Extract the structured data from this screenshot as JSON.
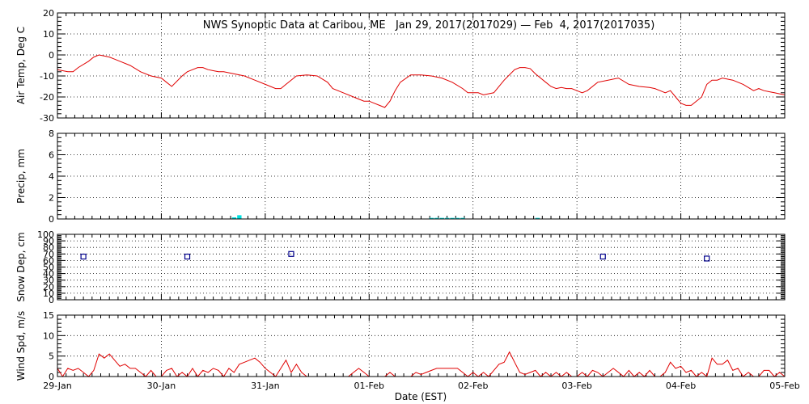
{
  "title": "NWS Synoptic Data at Caribou, ME   Jan 29, 2017(2017029) — Feb  4, 2017(2017035)",
  "xlabel": "Date (EST)",
  "x_tick_labels": [
    "29-Jan",
    "30-Jan",
    "31-Jan",
    "01-Feb",
    "02-Feb",
    "03-Feb",
    "04-Feb",
    "05-Feb"
  ],
  "colors": {
    "temp": "#e00000",
    "precip": "#00e0e0",
    "snow": "#00008b",
    "wind": "#e00000",
    "axis": "#000000",
    "grid": "#000000"
  },
  "chart_data": [
    {
      "type": "line",
      "name": "air_temp",
      "ylabel": "Air Temp, Deg C",
      "ylim": [
        -30,
        20
      ],
      "yticks": [
        -30,
        -20,
        -10,
        0,
        10,
        20
      ],
      "xlim": [
        0,
        7
      ],
      "grid": true,
      "series": [
        {
          "name": "",
          "x": [
            0.0,
            0.1,
            0.15,
            0.2,
            0.3,
            0.35,
            0.4,
            0.45,
            0.5,
            0.55,
            0.6,
            0.7,
            0.8,
            0.9,
            1.0,
            1.05,
            1.1,
            1.2,
            1.25,
            1.3,
            1.35,
            1.4,
            1.45,
            1.5,
            1.55,
            1.6,
            1.7,
            1.8,
            1.9,
            2.0,
            2.1,
            2.15,
            2.2,
            2.3,
            2.4,
            2.5,
            2.6,
            2.65,
            2.75,
            2.85,
            2.9,
            2.95,
            3.0,
            3.05,
            3.1,
            3.15,
            3.2,
            3.25,
            3.3,
            3.4,
            3.5,
            3.6,
            3.7,
            3.8,
            3.9,
            3.95,
            4.0,
            4.05,
            4.1,
            4.2,
            4.3,
            4.4,
            4.45,
            4.5,
            4.55,
            4.6,
            4.7,
            4.75,
            4.8,
            4.85,
            4.9,
            4.95,
            5.0,
            5.05,
            5.1,
            5.2,
            5.3,
            5.4,
            5.5,
            5.6,
            5.7,
            5.75,
            5.8,
            5.85,
            5.9,
            5.95,
            6.0,
            6.05,
            6.1,
            6.2,
            6.25,
            6.3,
            6.35,
            6.4,
            6.5,
            6.6,
            6.7,
            6.75,
            6.8,
            6.85,
            6.9,
            6.95,
            7.0
          ],
          "y": [
            -7,
            -8,
            -8,
            -6,
            -3,
            -1,
            0,
            -0.5,
            -1,
            -2,
            -3,
            -5,
            -8,
            -10,
            -11,
            -13,
            -15,
            -10,
            -8,
            -7,
            -6,
            -6,
            -7,
            -7.5,
            -8,
            -8,
            -9,
            -10,
            -12,
            -14,
            -16,
            -16,
            -14,
            -10,
            -9.5,
            -10,
            -13,
            -16,
            -18,
            -20,
            -21,
            -22,
            -22,
            -23,
            -24,
            -25,
            -22,
            -17,
            -13,
            -9.5,
            -9.5,
            -10,
            -11,
            -13,
            -16,
            -18,
            -18,
            -18,
            -19,
            -18,
            -12,
            -7,
            -6,
            -6,
            -6.5,
            -9,
            -13,
            -15,
            -16,
            -15.5,
            -16,
            -16,
            -17,
            -18,
            -17,
            -13,
            -12,
            -11,
            -14,
            -15,
            -15.5,
            -16,
            -17,
            -18,
            -17,
            -20,
            -23,
            -24,
            -24,
            -20,
            -14,
            -12,
            -12,
            -11,
            -12,
            -14,
            -17,
            -16,
            -17,
            -17.5,
            -18,
            -18.5,
            -19
          ]
        }
      ]
    },
    {
      "type": "bar",
      "name": "precip",
      "ylabel": "Precip, mm",
      "ylim": [
        0,
        8
      ],
      "yticks": [
        0,
        2,
        4,
        6,
        8
      ],
      "xlim": [
        0,
        7
      ],
      "grid": true,
      "series": [
        {
          "name": "",
          "x": [
            1.68,
            1.73,
            3.58,
            3.63,
            3.68,
            3.73,
            3.78,
            3.83,
            3.88,
            4.6
          ],
          "values": [
            0.15,
            0.35,
            0.1,
            0.1,
            0.1,
            0.1,
            0.1,
            0.1,
            0.1,
            0.1
          ]
        }
      ]
    },
    {
      "type": "scatter",
      "name": "snow_depth",
      "ylabel": "Snow Dep, cm",
      "ylim": [
        0,
        100
      ],
      "yticks": [
        0,
        10,
        20,
        30,
        40,
        50,
        60,
        70,
        80,
        90,
        100
      ],
      "xlim": [
        0,
        7
      ],
      "grid": true,
      "series": [
        {
          "name": "",
          "x": [
            0.25,
            1.25,
            2.25,
            5.25,
            6.25
          ],
          "y": [
            66,
            66,
            70,
            66,
            63
          ]
        }
      ]
    },
    {
      "type": "line",
      "name": "wind_speed",
      "ylabel": "Wind Spd, m/s",
      "ylim": [
        0,
        15
      ],
      "yticks": [
        0,
        5,
        10,
        15
      ],
      "xlim": [
        0,
        7
      ],
      "grid": true,
      "series": [
        {
          "name": "",
          "x": [
            0,
            0.05,
            0.1,
            0.15,
            0.2,
            0.25,
            0.3,
            0.35,
            0.4,
            0.45,
            0.5,
            0.55,
            0.6,
            0.65,
            0.7,
            0.75,
            0.8,
            0.85,
            0.9,
            0.95,
            1.0,
            1.05,
            1.1,
            1.15,
            1.2,
            1.25,
            1.3,
            1.35,
            1.4,
            1.45,
            1.5,
            1.55,
            1.6,
            1.65,
            1.7,
            1.75,
            1.8,
            1.85,
            1.9,
            1.95,
            2.0,
            2.05,
            2.1,
            2.15,
            2.2,
            2.25,
            2.3,
            2.35,
            2.4,
            2.45,
            2.5,
            2.55,
            2.6,
            2.65,
            2.7,
            2.75,
            2.8,
            2.85,
            2.9,
            2.95,
            3.0,
            3.05,
            3.1,
            3.15,
            3.2,
            3.25,
            3.3,
            3.35,
            3.4,
            3.45,
            3.5,
            3.55,
            3.6,
            3.65,
            3.7,
            3.75,
            3.8,
            3.85,
            3.9,
            3.95,
            4.0,
            4.05,
            4.1,
            4.15,
            4.2,
            4.25,
            4.3,
            4.35,
            4.4,
            4.45,
            4.5,
            4.55,
            4.6,
            4.65,
            4.7,
            4.75,
            4.8,
            4.85,
            4.9,
            4.95,
            5.0,
            5.05,
            5.1,
            5.15,
            5.2,
            5.25,
            5.3,
            5.35,
            5.4,
            5.45,
            5.5,
            5.55,
            5.6,
            5.65,
            5.7,
            5.75,
            5.8,
            5.85,
            5.9,
            5.95,
            6.0,
            6.05,
            6.1,
            6.15,
            6.2,
            6.25,
            6.3,
            6.35,
            6.4,
            6.45,
            6.5,
            6.55,
            6.6,
            6.65,
            6.7,
            6.75,
            6.8,
            6.85,
            6.9,
            6.95,
            7.0
          ],
          "y": [
            2,
            0,
            2,
            1.5,
            2,
            1,
            0,
            1.5,
            5.5,
            4.5,
            5.5,
            4,
            2.5,
            3,
            2,
            2,
            1,
            0,
            1.5,
            0,
            0,
            1.5,
            2,
            0,
            1,
            0,
            2,
            0,
            1.5,
            1,
            2,
            1.5,
            0,
            2,
            1,
            3,
            3.5,
            4,
            4.5,
            3.5,
            2,
            1,
            0,
            2,
            4,
            1,
            3,
            1,
            0,
            0,
            0,
            0,
            0,
            0,
            0,
            0,
            0,
            1,
            2,
            1,
            0,
            0,
            0,
            0,
            1,
            0,
            0,
            0,
            0,
            1,
            0.5,
            1,
            1.5,
            2,
            2,
            2,
            2,
            2,
            1,
            0,
            1,
            0,
            1,
            0,
            1.5,
            3,
            3.5,
            6,
            3.5,
            1,
            0.5,
            1,
            1.5,
            0,
            1,
            0,
            1,
            0,
            1,
            0,
            0,
            1,
            0,
            1.5,
            1,
            0,
            1,
            2,
            1,
            0,
            1.5,
            0,
            1,
            0,
            1.5,
            0,
            0,
            1,
            3.5,
            2,
            2.5,
            1,
            1.5,
            0,
            1,
            0,
            4.5,
            3,
            3,
            4,
            1.5,
            2,
            0,
            1,
            0,
            0,
            1.5,
            1.5,
            0,
            1,
            0
          ]
        }
      ]
    }
  ]
}
